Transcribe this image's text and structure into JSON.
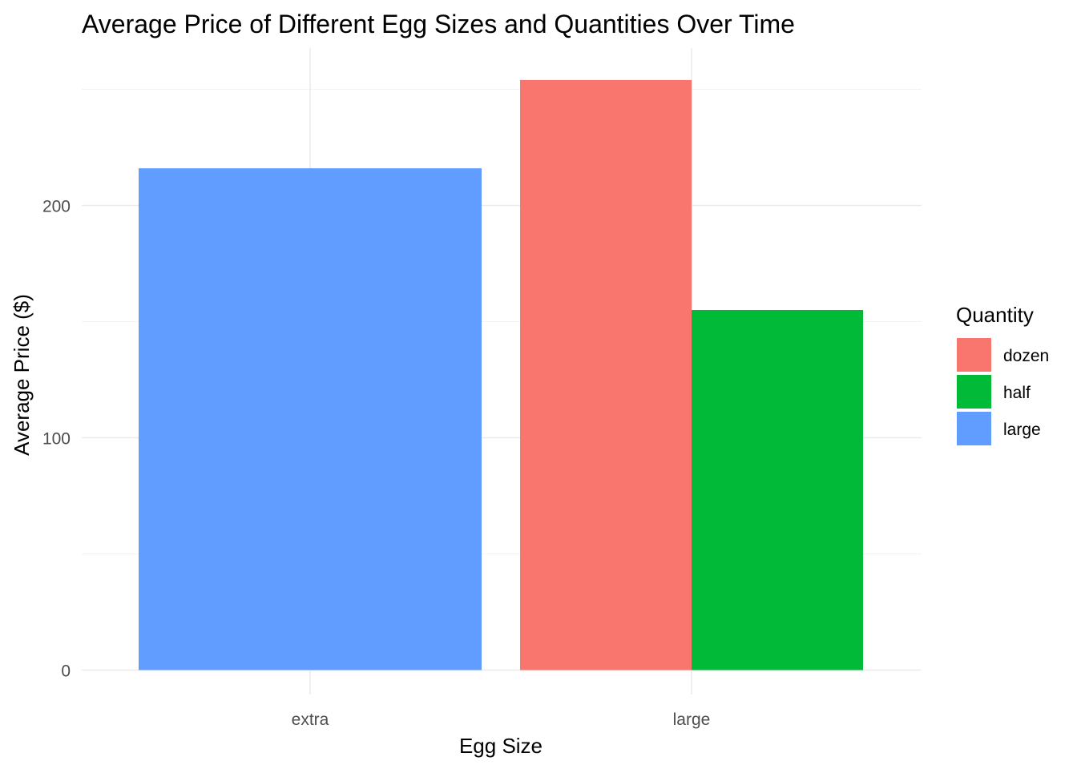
{
  "chart_data": {
    "type": "bar",
    "title": "Average Price of Different Egg Sizes and Quantities Over Time",
    "xlabel": "Egg Size",
    "ylabel": "Average Price ($)",
    "categories": [
      "extra",
      "large"
    ],
    "y_ticks": [
      0,
      100,
      200
    ],
    "ylim": [
      0,
      260
    ],
    "grid": true,
    "legend": {
      "title": "Quantity",
      "placement": "right",
      "entries": [
        {
          "label": "dozen",
          "color": "#F8766D"
        },
        {
          "label": "half",
          "color": "#00BA38"
        },
        {
          "label": "large",
          "color": "#619CFF"
        }
      ]
    },
    "bars": [
      {
        "category": "extra",
        "series": "large",
        "value": 216,
        "color": "#619CFF"
      },
      {
        "category": "large",
        "series": "dozen",
        "value": 254,
        "color": "#F8766D"
      },
      {
        "category": "large",
        "series": "half",
        "value": 155,
        "color": "#00BA38"
      }
    ]
  }
}
